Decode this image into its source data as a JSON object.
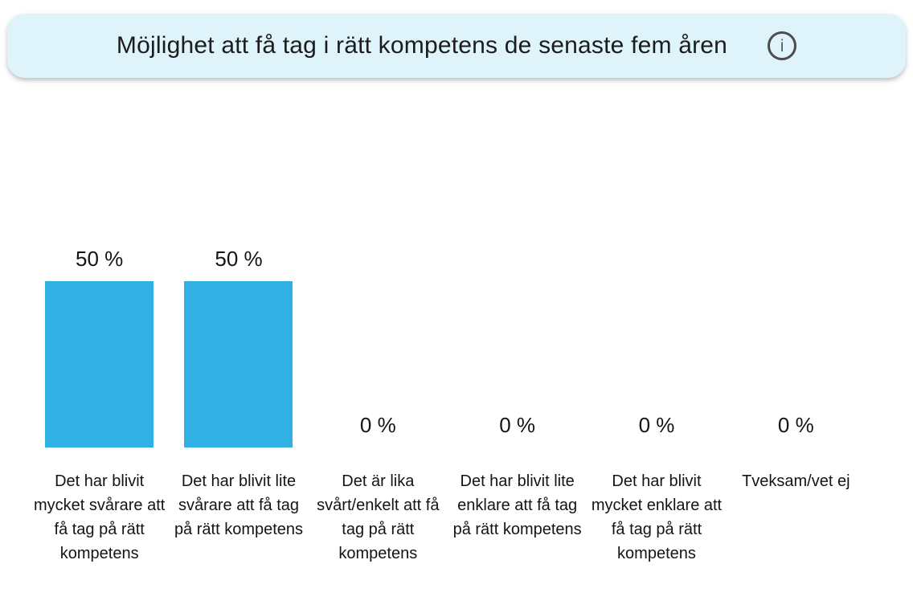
{
  "header": {
    "title": "Möjlighet att få tag i rätt kompetens de senaste fem åren",
    "info_icon": "i"
  },
  "colors": {
    "header_bg": "#dff3fb",
    "bar": "#30b0e3",
    "text": "#1a1a1a"
  },
  "chart_data": {
    "type": "bar",
    "title": "Möjlighet att få tag i rätt kompetens de senaste fem åren",
    "categories": [
      "Det har blivit mycket svårare att få tag på rätt kompetens",
      "Det har blivit lite svårare att få tag på rätt kompetens",
      "Det är lika svårt/enkelt att få tag på rätt kompetens",
      "Det har blivit lite enklare att få tag på rätt kompetens",
      "Det har blivit mycket enklare att få tag på rätt kompetens",
      "Tveksam/vet ej"
    ],
    "values": [
      50,
      50,
      0,
      0,
      0,
      0
    ],
    "value_labels": [
      "50 %",
      "50 %",
      "0 %",
      "0 %",
      "0 %",
      "0 %"
    ],
    "xlabel": "",
    "ylabel": "",
    "ylim": [
      0,
      100
    ],
    "unit": "%",
    "grid": false,
    "legend": false,
    "bar_color": "#30b0e3"
  }
}
